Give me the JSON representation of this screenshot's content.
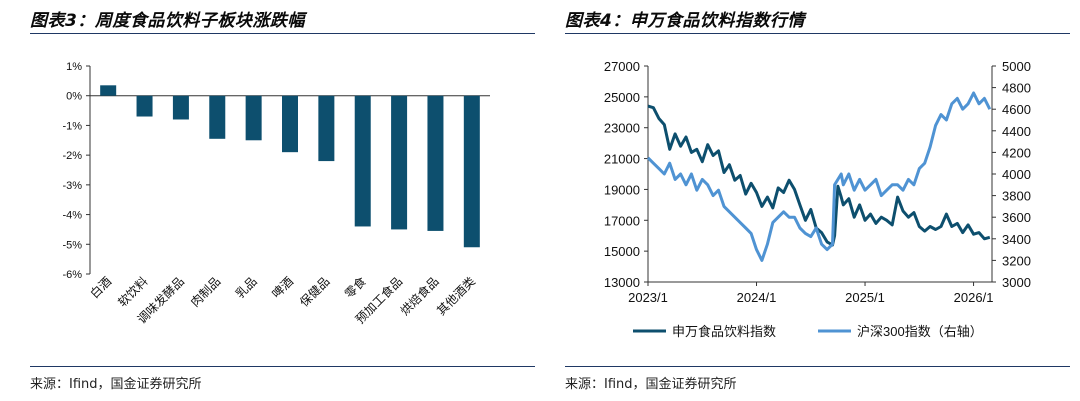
{
  "left_panel": {
    "title": "图表3：周度食品饮料子板块涨跌幅",
    "source": "来源：Ifind，国金证券研究所"
  },
  "right_panel": {
    "title": "图表4：申万食品饮料指数行情",
    "source": "来源：Ifind，国金证券研究所"
  },
  "colors": {
    "bar": "#0d4f6e",
    "series_dark": "#0d4f6e",
    "series_light": "#4f93d3",
    "rule": "#1f3864"
  },
  "chart_data": [
    {
      "type": "bar",
      "title": "",
      "categories": [
        "白酒",
        "软饮料",
        "调味发酵品",
        "肉制品",
        "乳品",
        "啤酒",
        "保健品",
        "零食",
        "预加工食品",
        "烘焙食品",
        "其他酒类"
      ],
      "values": [
        0.35,
        -0.7,
        -0.8,
        -1.45,
        -1.5,
        -1.9,
        -2.2,
        -4.4,
        -4.5,
        -4.55,
        -5.1
      ],
      "ylim": [
        -6,
        1
      ],
      "yticks": [
        "1%",
        "0%",
        "-1%",
        "-2%",
        "-3%",
        "-4%",
        "-5%",
        "-6%"
      ],
      "xlabel": "",
      "ylabel": ""
    },
    {
      "type": "line",
      "title": "",
      "x_ticks": [
        "2023/1",
        "2024/1",
        "2025/1",
        "2026/1"
      ],
      "left_axis": {
        "ticks": [
          "27000",
          "25000",
          "23000",
          "21000",
          "19000",
          "17000",
          "15000",
          "13000"
        ],
        "ylim": [
          13000,
          27000
        ]
      },
      "right_axis": {
        "ticks": [
          "5000",
          "4800",
          "4600",
          "4400",
          "4200",
          "4000",
          "3800",
          "3600",
          "3400",
          "3200",
          "3000"
        ],
        "ylim": [
          3000,
          5000
        ]
      },
      "series": [
        {
          "name": "申万食品饮料指数",
          "axis": "left",
          "x": [
            2023.0,
            2023.05,
            2023.1,
            2023.15,
            2023.2,
            2023.25,
            2023.3,
            2023.35,
            2023.4,
            2023.45,
            2023.5,
            2023.55,
            2023.6,
            2023.65,
            2023.7,
            2023.75,
            2023.8,
            2023.85,
            2023.9,
            2023.95,
            2024.0,
            2024.05,
            2024.1,
            2024.15,
            2024.2,
            2024.25,
            2024.3,
            2024.35,
            2024.4,
            2024.45,
            2024.5,
            2024.55,
            2024.6,
            2024.65,
            2024.7,
            2024.72,
            2024.75,
            2024.78,
            2024.8,
            2024.85,
            2024.9,
            2024.95,
            2025.0,
            2025.05,
            2025.1,
            2025.15,
            2025.2,
            2025.25,
            2025.3,
            2025.35,
            2025.4,
            2025.45,
            2025.5,
            2025.55,
            2025.6,
            2025.65,
            2025.7,
            2025.75,
            2025.8,
            2025.85,
            2025.9,
            2025.95,
            2026.0,
            2026.05,
            2026.1,
            2026.15
          ],
          "values": [
            24400,
            24300,
            23600,
            23200,
            21600,
            22600,
            21800,
            22400,
            21400,
            21600,
            20800,
            21900,
            21200,
            21500,
            20100,
            20600,
            19600,
            19900,
            18700,
            19400,
            18800,
            17900,
            18500,
            17800,
            19100,
            18800,
            19600,
            19000,
            18000,
            17000,
            17700,
            16500,
            16200,
            15600,
            15400,
            16000,
            19200,
            18500,
            18000,
            18400,
            17200,
            18000,
            17000,
            17400,
            16800,
            17200,
            17000,
            16700,
            18500,
            17600,
            17200,
            17500,
            16600,
            16300,
            16600,
            16400,
            16600,
            17400,
            16600,
            16800,
            16200,
            16700,
            16100,
            16200,
            15800,
            15900
          ]
        },
        {
          "name": "沪深300指数（右轴）",
          "axis": "right",
          "x": [
            2023.0,
            2023.05,
            2023.1,
            2023.15,
            2023.2,
            2023.25,
            2023.3,
            2023.35,
            2023.4,
            2023.45,
            2023.5,
            2023.55,
            2023.6,
            2023.65,
            2023.7,
            2023.75,
            2023.8,
            2023.85,
            2023.9,
            2023.95,
            2024.0,
            2024.05,
            2024.1,
            2024.15,
            2024.2,
            2024.25,
            2024.3,
            2024.35,
            2024.4,
            2024.45,
            2024.5,
            2024.55,
            2024.6,
            2024.65,
            2024.7,
            2024.72,
            2024.75,
            2024.78,
            2024.8,
            2024.85,
            2024.9,
            2024.95,
            2025.0,
            2025.05,
            2025.1,
            2025.15,
            2025.2,
            2025.25,
            2025.3,
            2025.35,
            2025.4,
            2025.45,
            2025.5,
            2025.55,
            2025.6,
            2025.65,
            2025.7,
            2025.75,
            2025.8,
            2025.85,
            2025.9,
            2025.95,
            2026.0,
            2026.05,
            2026.1,
            2026.15
          ],
          "values": [
            4150,
            4100,
            4050,
            4000,
            4100,
            3950,
            4000,
            3900,
            4000,
            3850,
            3950,
            3900,
            3800,
            3850,
            3700,
            3650,
            3600,
            3550,
            3500,
            3450,
            3300,
            3200,
            3350,
            3550,
            3600,
            3650,
            3600,
            3600,
            3500,
            3450,
            3420,
            3500,
            3350,
            3300,
            3350,
            3900,
            3950,
            4000,
            3900,
            4000,
            3850,
            3950,
            3850,
            3900,
            3950,
            3800,
            3850,
            3900,
            3900,
            3850,
            3950,
            3900,
            4050,
            4100,
            4250,
            4450,
            4550,
            4500,
            4650,
            4700,
            4600,
            4650,
            4750,
            4650,
            4700,
            4600
          ]
        }
      ]
    }
  ]
}
